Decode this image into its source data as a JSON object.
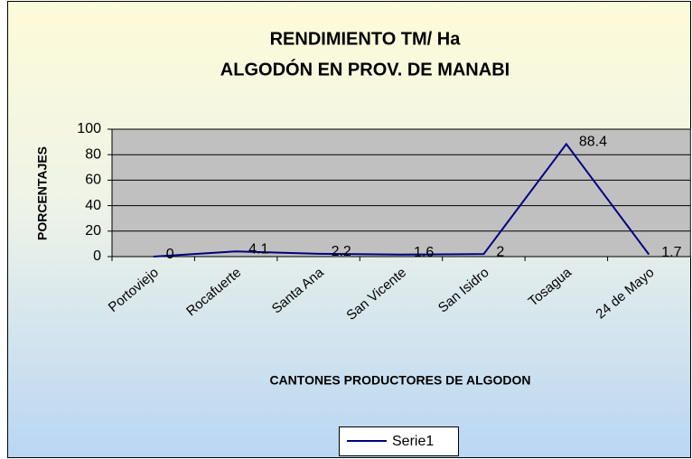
{
  "chart_data": {
    "type": "line",
    "title": [
      "RENDIMIENTO TM/ Ha",
      "ALGODÓN EN PROV. DE MANABI"
    ],
    "y_label": "PORCENTAJES",
    "x_label": "CANTONES PRODUCTORES DE ALGODON",
    "categories": [
      "Portoviejo",
      "Rocafuerte",
      "Santa Ana",
      "San Vicente",
      "San Isidro",
      "Tosagua",
      "24 de Mayo"
    ],
    "series": [
      {
        "name": "Serie1",
        "color": "#000080",
        "values": [
          0,
          4.1,
          2.2,
          1.6,
          2,
          88.4,
          1.7
        ]
      }
    ],
    "ylim": [
      0,
      100
    ],
    "yticks": [
      0,
      20,
      40,
      60,
      80,
      100
    ],
    "grid": true,
    "legend": "bottom"
  }
}
